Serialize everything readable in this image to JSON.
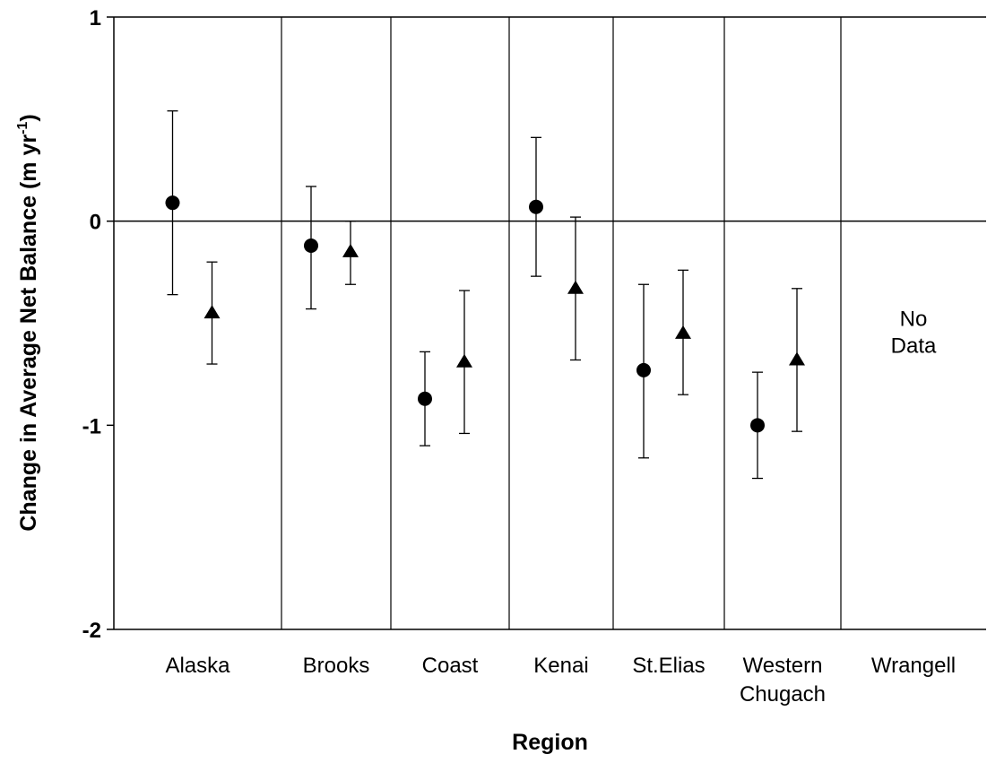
{
  "chart_data": {
    "type": "scatter",
    "xlabel": "Region",
    "ylabel_main": "Change in Average Net Balance (m yr",
    "ylabel_sup": "-1",
    "ylabel_close": ")",
    "ylim": [
      -2,
      1
    ],
    "yticks": [
      {
        "value": 1,
        "label": "1"
      },
      {
        "value": 0,
        "label": "0"
      },
      {
        "value": -1,
        "label": "-1"
      },
      {
        "value": -2,
        "label": "-2"
      }
    ],
    "zero_line": true,
    "categories": [
      {
        "lines": [
          "Alaska"
        ]
      },
      {
        "lines": [
          "Brooks"
        ]
      },
      {
        "lines": [
          "Coast"
        ]
      },
      {
        "lines": [
          "Kenai"
        ]
      },
      {
        "lines": [
          "St.Elias"
        ]
      },
      {
        "lines": [
          "Western",
          "Chugach"
        ]
      },
      {
        "lines": [
          "Wrangell"
        ]
      }
    ],
    "series": [
      {
        "marker": "circle",
        "points": [
          {
            "y": 0.09,
            "low": -0.36,
            "high": 0.54
          },
          {
            "y": -0.12,
            "low": -0.43,
            "high": 0.17
          },
          {
            "y": -0.87,
            "low": -1.1,
            "high": -0.64
          },
          {
            "y": 0.07,
            "low": -0.27,
            "high": 0.41
          },
          {
            "y": -0.73,
            "low": -1.16,
            "high": -0.31
          },
          {
            "y": -1.0,
            "low": -1.26,
            "high": -0.74
          },
          null
        ]
      },
      {
        "marker": "triangle",
        "points": [
          {
            "y": -0.45,
            "low": -0.7,
            "high": -0.2
          },
          {
            "y": -0.15,
            "low": -0.31,
            "high": 0.0
          },
          {
            "y": -0.69,
            "low": -1.04,
            "high": -0.34
          },
          {
            "y": -0.33,
            "low": -0.68,
            "high": 0.02
          },
          {
            "y": -0.55,
            "low": -0.85,
            "high": -0.24
          },
          {
            "y": -0.68,
            "low": -1.03,
            "high": -0.33
          },
          null
        ]
      }
    ],
    "annotation": {
      "category_index": 6,
      "lines": [
        "No",
        "Data"
      ],
      "y": -0.58
    }
  }
}
